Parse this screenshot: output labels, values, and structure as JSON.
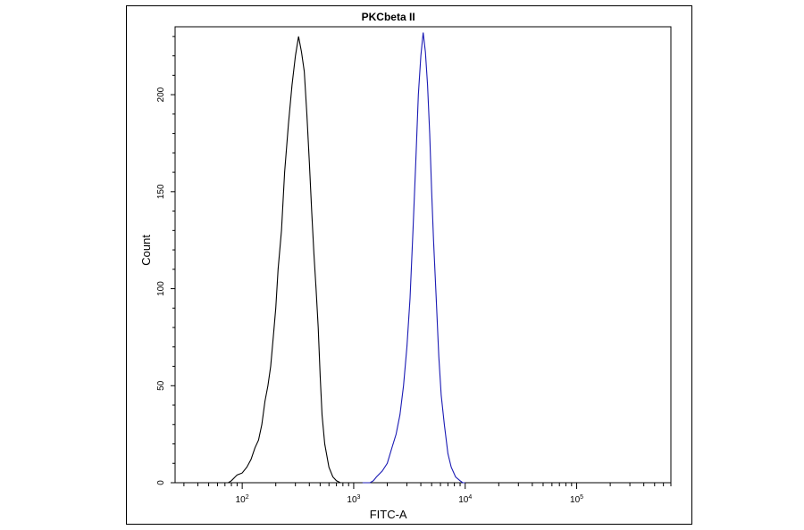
{
  "chart_data": {
    "type": "histogram-line",
    "title": "PKCbeta II",
    "xlabel": "FITC-A",
    "ylabel": "Count",
    "x_scale": "log",
    "xlim": [
      25,
      700000
    ],
    "ylim": [
      0,
      235
    ],
    "y_ticks": [
      0,
      50,
      100,
      150,
      200
    ],
    "x_ticks": [
      {
        "value": 100,
        "base": "10",
        "exp": "2"
      },
      {
        "value": 1000,
        "base": "10",
        "exp": "3"
      },
      {
        "value": 10000,
        "base": "10",
        "exp": "4"
      },
      {
        "value": 100000,
        "base": "10",
        "exp": "5"
      }
    ],
    "series": [
      {
        "color": "#000000",
        "points": [
          [
            60,
            0
          ],
          [
            75,
            0
          ],
          [
            80,
            1
          ],
          [
            90,
            4
          ],
          [
            100,
            5
          ],
          [
            110,
            8
          ],
          [
            120,
            12
          ],
          [
            130,
            18
          ],
          [
            140,
            22
          ],
          [
            150,
            30
          ],
          [
            160,
            42
          ],
          [
            170,
            50
          ],
          [
            180,
            60
          ],
          [
            190,
            75
          ],
          [
            200,
            90
          ],
          [
            210,
            110
          ],
          [
            225,
            130
          ],
          [
            240,
            160
          ],
          [
            260,
            185
          ],
          [
            280,
            205
          ],
          [
            300,
            220
          ],
          [
            320,
            230
          ],
          [
            340,
            222
          ],
          [
            360,
            212
          ],
          [
            380,
            190
          ],
          [
            400,
            165
          ],
          [
            420,
            140
          ],
          [
            440,
            118
          ],
          [
            460,
            100
          ],
          [
            480,
            80
          ],
          [
            500,
            55
          ],
          [
            520,
            35
          ],
          [
            550,
            20
          ],
          [
            600,
            8
          ],
          [
            650,
            3
          ],
          [
            700,
            1
          ],
          [
            760,
            0
          ],
          [
            800,
            0
          ]
        ]
      },
      {
        "color": "#1a1ab4",
        "points": [
          [
            1200,
            0
          ],
          [
            1400,
            0
          ],
          [
            1500,
            1
          ],
          [
            1600,
            3
          ],
          [
            1800,
            6
          ],
          [
            2000,
            10
          ],
          [
            2200,
            18
          ],
          [
            2400,
            25
          ],
          [
            2600,
            35
          ],
          [
            2800,
            50
          ],
          [
            3000,
            70
          ],
          [
            3200,
            95
          ],
          [
            3400,
            130
          ],
          [
            3600,
            165
          ],
          [
            3800,
            200
          ],
          [
            4000,
            220
          ],
          [
            4200,
            232
          ],
          [
            4400,
            222
          ],
          [
            4600,
            205
          ],
          [
            4800,
            180
          ],
          [
            5000,
            150
          ],
          [
            5200,
            125
          ],
          [
            5500,
            95
          ],
          [
            5800,
            65
          ],
          [
            6100,
            45
          ],
          [
            6500,
            30
          ],
          [
            7000,
            15
          ],
          [
            7500,
            8
          ],
          [
            8200,
            3
          ],
          [
            9000,
            1
          ],
          [
            9500,
            0
          ],
          [
            10000,
            0
          ]
        ]
      }
    ]
  }
}
